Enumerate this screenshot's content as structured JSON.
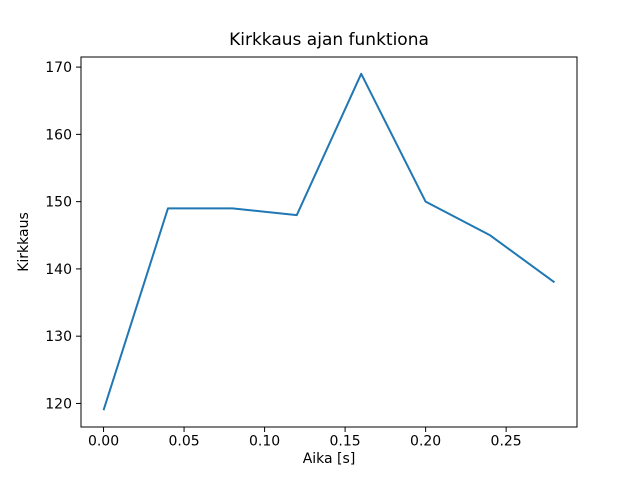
{
  "chart_data": {
    "type": "line",
    "title": "Kirkkaus ajan funktiona",
    "xlabel": "Aika [s]",
    "ylabel": "Kirkkaus",
    "x": [
      0.0,
      0.04,
      0.08,
      0.12,
      0.16,
      0.2,
      0.24,
      0.28
    ],
    "values": [
      119,
      149,
      149,
      148,
      169,
      150,
      145,
      138
    ],
    "xlim": [
      -0.014,
      0.294
    ],
    "ylim": [
      116.5,
      171.5
    ],
    "x_tick_values": [
      0.0,
      0.05,
      0.1,
      0.15,
      0.2,
      0.25
    ],
    "x_tick_labels": [
      "0.00",
      "0.05",
      "0.10",
      "0.15",
      "0.20",
      "0.25"
    ],
    "y_tick_values": [
      120,
      130,
      140,
      150,
      160,
      170
    ],
    "y_tick_labels": [
      "120",
      "130",
      "140",
      "150",
      "160",
      "170"
    ],
    "line_color": "#1f77b4",
    "axis_color": "#000000",
    "grid": false,
    "legend": "none"
  }
}
